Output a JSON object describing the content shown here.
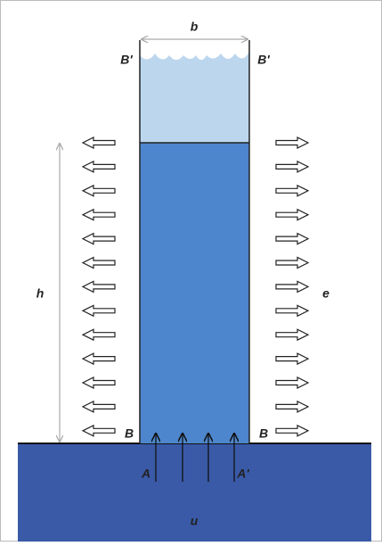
{
  "labels": {
    "width": "b",
    "top_left": "B'",
    "top_right": "B'",
    "height": "h",
    "outflow": "e",
    "bottom_left": "B",
    "bottom_right": "B",
    "inflow_left": "A",
    "inflow_right": "A'",
    "ground": "u"
  }
}
